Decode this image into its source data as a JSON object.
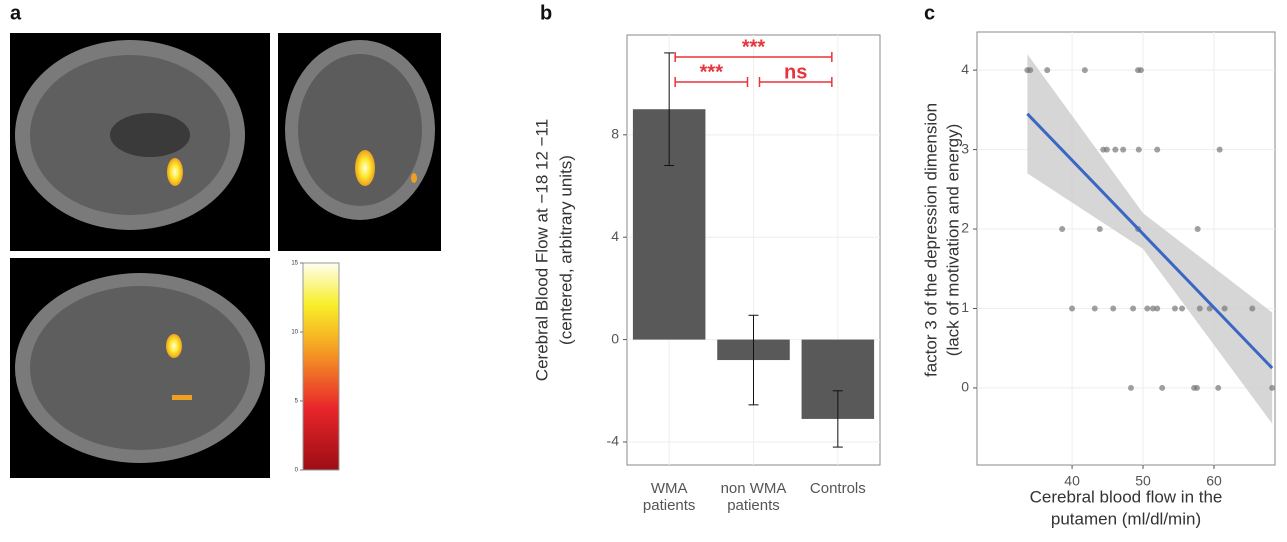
{
  "panel_a": {
    "label": "a",
    "colorbar": {
      "lim": [
        0,
        15
      ],
      "ticks": [
        0,
        5,
        10,
        15
      ]
    }
  },
  "chart_data": [
    {
      "type": "bar",
      "label": "b",
      "ylabel": [
        "Cerebral Blood Flow at −18 12 −11",
        "(centered, arbitrary units)"
      ],
      "categories": [
        "WMA patients",
        "non WMA patients",
        "Controls"
      ],
      "values": [
        9.0,
        -0.8,
        -3.1
      ],
      "errors": [
        2.2,
        1.75,
        1.1
      ],
      "color": "#595959",
      "ylim": [
        -4.9,
        11.9
      ],
      "yticks": [
        -4,
        0,
        4,
        8
      ],
      "grid": true,
      "significance": [
        {
          "from": 0,
          "to": 2,
          "label": "***"
        },
        {
          "from": 0,
          "to": 1,
          "label": "***"
        },
        {
          "from": 1,
          "to": 2,
          "label": "ns"
        }
      ],
      "significance_color": "#e8343a"
    },
    {
      "type": "scatter",
      "label": "c",
      "xlabel": [
        "Cerebral blood flow in the",
        "putamen (ml/dl/min)"
      ],
      "ylabel": [
        "factor 3 of the depression dimension",
        "(lack of motivation and energy)"
      ],
      "x": [
        33.7,
        34.1,
        36.5,
        41.8,
        49.3,
        49.7,
        44.4,
        44.9,
        46.1,
        47.2,
        49.4,
        52.0,
        60.8,
        38.6,
        43.9,
        49.3,
        57.7,
        40.0,
        43.2,
        45.8,
        48.6,
        50.6,
        51.4,
        52.0,
        54.5,
        55.5,
        58.0,
        59.4,
        61.5,
        65.4,
        48.3,
        52.7,
        57.2,
        57.6,
        60.6,
        68.2
      ],
      "y": [
        4,
        4,
        4,
        4,
        4,
        4,
        3,
        3,
        3,
        3,
        3,
        3,
        3,
        2,
        2,
        2,
        2,
        1,
        1,
        1,
        1,
        1,
        1,
        1,
        1,
        1,
        1,
        1,
        1,
        1,
        0,
        0,
        0,
        0,
        0,
        0
      ],
      "point_color": "#777777",
      "fit_color": "#3a66c4",
      "band_color": "#cccccc",
      "fit": {
        "x": [
          33.7,
          68.2
        ],
        "y": [
          3.45,
          0.25
        ]
      },
      "band": {
        "x": [
          33.7,
          50,
          68.2
        ],
        "lower": [
          2.7,
          1.75,
          -0.45
        ],
        "upper": [
          4.2,
          2.2,
          0.95
        ]
      },
      "xlim": [
        26.6,
        68.6
      ],
      "ylim": [
        -0.97,
        4.48
      ],
      "xticks": [
        40,
        50,
        60
      ],
      "yticks": [
        0,
        1,
        2,
        3,
        4
      ],
      "grid": true
    }
  ]
}
